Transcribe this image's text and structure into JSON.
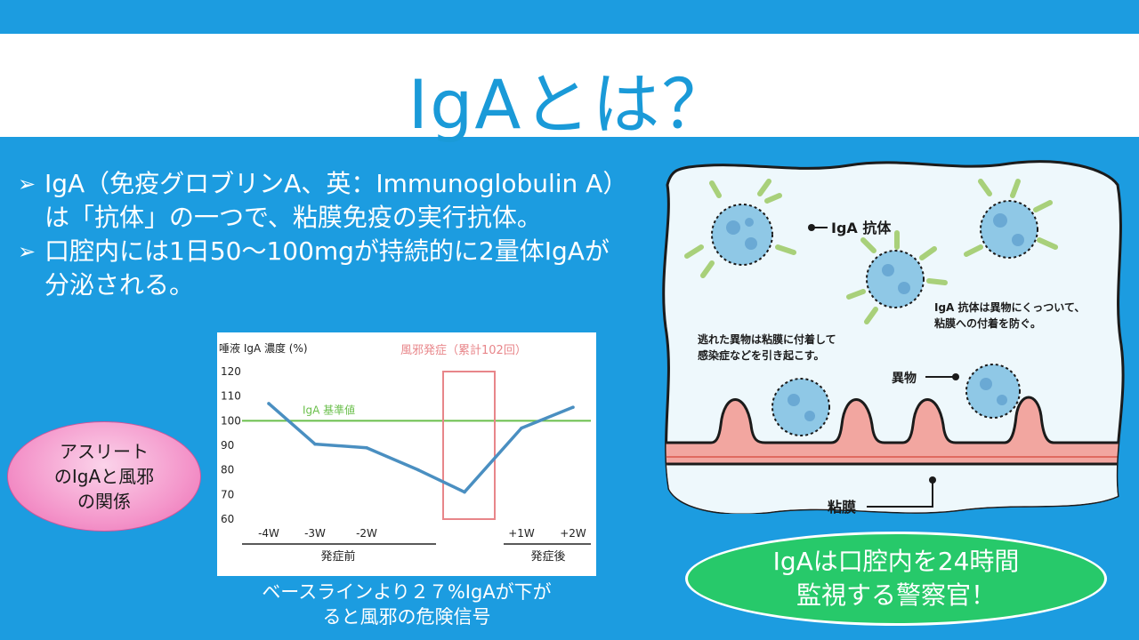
{
  "slide": {
    "title": "IgAとは？",
    "bullets": [
      {
        "line1": "IgA（免疫グロブリンA、英：Immunoglobulin A）",
        "line2": "は「抗体」の一つで、粘膜免疫の実行抗体。"
      },
      {
        "line1": "口腔内には1日50〜100mgが持続的に2量体IgAが",
        "line2": "分泌される。"
      }
    ],
    "bullet_marker": "➢",
    "pink_label": {
      "line1": "アスリート",
      "line2": "のIgAと風邪",
      "line3": "の関係"
    },
    "caption": {
      "line1": "ベースラインより２７%IgAが下が",
      "line2": "ると風邪の危険信号"
    },
    "green_label": {
      "line1": "IgAは口腔内を24時間",
      "line2": "監視する警察官！"
    }
  },
  "illustration": {
    "label_antibody": "IgA 抗体",
    "note_attach_1": "IgA 抗体は異物にくっついて、",
    "note_attach_2": "粘膜への付着を防ぐ。",
    "note_escape_1": "逃れた異物は粘膜に付着して",
    "note_escape_2": "感染症などを引き起こす。",
    "label_foreign": "異物",
    "label_mucosa": "粘膜"
  },
  "chart_data": {
    "type": "line",
    "ylabel": "唾液 IgA 濃度 (%)",
    "ylim": [
      60,
      120
    ],
    "yticks": [
      120,
      110,
      100,
      90,
      80,
      70,
      60
    ],
    "x_tick_labels": [
      "-4W",
      "-3W",
      "-2W",
      "+1W",
      "+2W"
    ],
    "group_labels": [
      "発症前",
      "発症後"
    ],
    "series": [
      {
        "values": [
          {
            "x": "-4W",
            "y": 107
          },
          {
            "x": "-3W",
            "y": 90.5
          },
          {
            "x": "-2W",
            "y": 89
          },
          {
            "x": "-1W",
            "y": 80
          },
          {
            "x": "onset",
            "y": 71
          },
          {
            "x": "+1W",
            "y": 97
          },
          {
            "x": "+2W",
            "y": 105.5
          }
        ]
      }
    ],
    "reference_line": {
      "label": "IgA 基準値",
      "y": 100
    },
    "event_box": {
      "label": "風邪発症（累計102回）",
      "y_from": 60,
      "y_to": 120
    },
    "colors": {
      "line": "#4a8fc1",
      "reference": "#6abf4b",
      "event": "#e8868a"
    }
  }
}
